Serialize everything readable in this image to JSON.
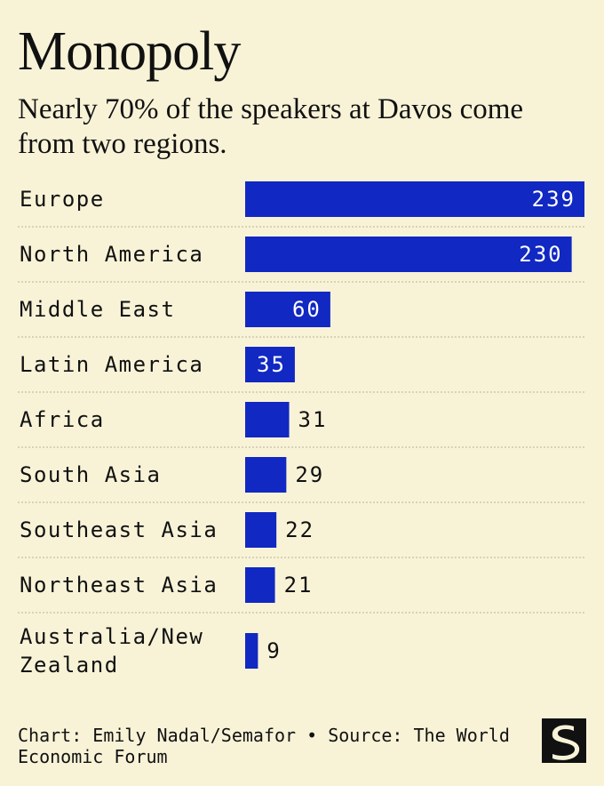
{
  "header": {
    "title": "Monopoly",
    "subtitle": "Nearly 70% of the speakers at Davos come from two regions."
  },
  "footer": {
    "credit": "Chart: Emily Nadal/Semafor • Source: The World Economic Forum",
    "logo_letter": "S"
  },
  "colors": {
    "background": "#f8f3d7",
    "bar": "#1128c2",
    "text": "#111111",
    "label_inside": "#ffffff",
    "divider": "#b9b39a"
  },
  "chart_data": {
    "type": "bar",
    "orientation": "horizontal",
    "title": "Monopoly",
    "subtitle": "Nearly 70% of the speakers at Davos come from two regions.",
    "categories": [
      "Europe",
      "North America",
      "Middle East",
      "Latin America",
      "Africa",
      "South Asia",
      "Southeast Asia",
      "Northeast Asia",
      "Australia/New Zealand"
    ],
    "category_lines": [
      [
        "Europe"
      ],
      [
        "North America"
      ],
      [
        "Middle East"
      ],
      [
        "Latin America"
      ],
      [
        "Africa"
      ],
      [
        "South Asia"
      ],
      [
        "Southeast Asia"
      ],
      [
        "Northeast Asia"
      ],
      [
        "Australia/New",
        "Zealand"
      ]
    ],
    "values": [
      239,
      230,
      60,
      35,
      31,
      29,
      22,
      21,
      9
    ],
    "xlim": [
      0,
      239
    ],
    "grid": false,
    "legend": "none",
    "data_labels": true
  }
}
